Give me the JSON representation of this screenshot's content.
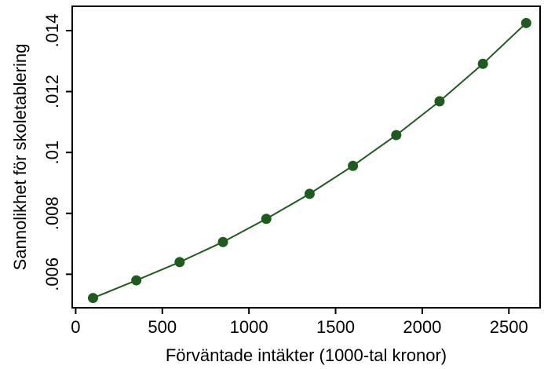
{
  "chart_data": {
    "type": "line",
    "title": "",
    "xlabel": "Förväntade intäkter (1000-tal kronor)",
    "ylabel": "Sannolikhet för skoletablering",
    "xlim": [
      -20,
      2680
    ],
    "ylim": [
      0.0049,
      0.0148
    ],
    "xticks": [
      0,
      500,
      1000,
      1500,
      2000,
      2500
    ],
    "xtick_labels": [
      "0",
      "500",
      "1000",
      "1500",
      "2000",
      "2500"
    ],
    "yticks": [
      0.006,
      0.008,
      0.01,
      0.012,
      0.014
    ],
    "ytick_labels": [
      ".006",
      ".008",
      ".01",
      ".012",
      ".014"
    ],
    "grid": false,
    "legend": "none",
    "series": [
      {
        "color": "#1e5c1e",
        "x": [
          100,
          350,
          600,
          850,
          1100,
          1350,
          1600,
          1850,
          2100,
          2350,
          2600
        ],
        "y": [
          0.00522,
          0.0058,
          0.0064,
          0.00706,
          0.00782,
          0.00864,
          0.00956,
          0.01057,
          0.01168,
          0.01291,
          0.01425
        ]
      }
    ]
  }
}
